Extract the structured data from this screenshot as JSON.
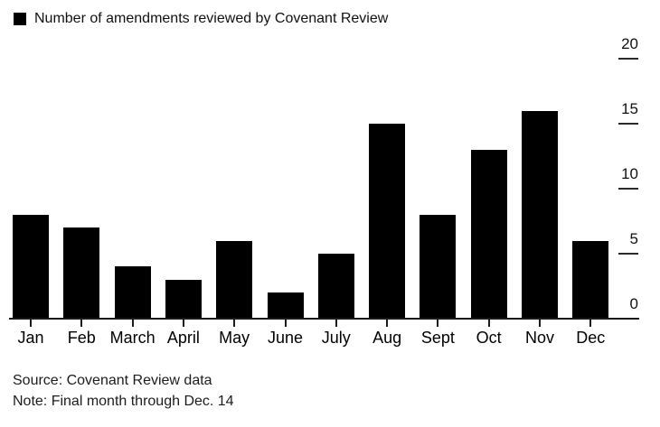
{
  "legend": {
    "label": "Number of amendments reviewed by Covenant Review",
    "swatch_color": "#000000"
  },
  "chart_data": {
    "type": "bar",
    "title": "Number of amendments reviewed by Covenant Review",
    "categories": [
      "Jan",
      "Feb",
      "March",
      "April",
      "May",
      "June",
      "July",
      "Aug",
      "Sept",
      "Oct",
      "Nov",
      "Dec"
    ],
    "values": [
      8,
      7,
      4,
      3,
      6,
      2,
      5,
      15,
      8,
      13,
      16,
      6
    ],
    "xlabel": "",
    "ylabel": "",
    "ylim": [
      0,
      20
    ],
    "yticks": [
      0,
      5,
      10,
      15,
      20
    ],
    "bar_color": "#000000",
    "grid": false,
    "legend_position": "top-left",
    "y_axis_side": "right"
  },
  "footer": {
    "source": "Source: Covenant Review data",
    "note": "Note: Final month through Dec. 14"
  }
}
